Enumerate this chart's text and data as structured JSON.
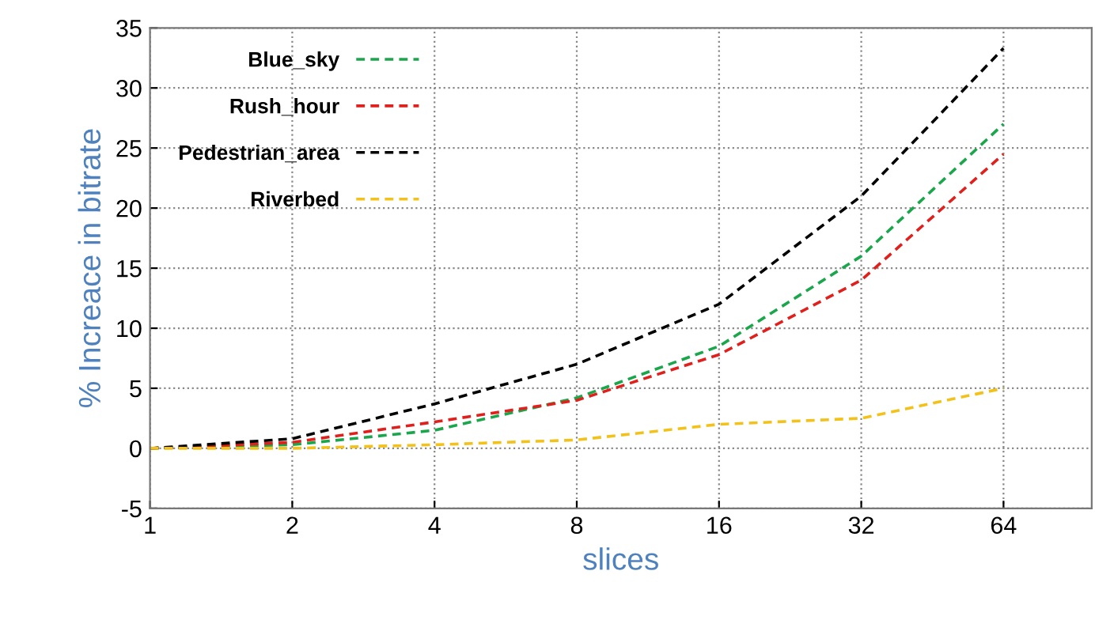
{
  "chart_data": {
    "type": "line",
    "xlabel": "slices",
    "ylabel": "% Increace in bitrate",
    "categories": [
      "1",
      "2",
      "4",
      "8",
      "16",
      "32",
      "64"
    ],
    "series": [
      {
        "name": "Blue_sky",
        "color": "#1aa64a",
        "values": [
          0,
          0.3,
          1.5,
          4.2,
          8.5,
          16,
          27
        ]
      },
      {
        "name": "Rush_hour",
        "color": "#e0201c",
        "values": [
          0,
          0.5,
          2.2,
          4,
          7.8,
          14,
          24.5
        ]
      },
      {
        "name": "Pedestrian_area",
        "color": "#000000",
        "values": [
          0,
          0.8,
          3.7,
          7,
          12,
          21,
          33.3
        ]
      },
      {
        "name": "Riverbed",
        "color": "#f2c21b",
        "values": [
          0,
          0,
          0.3,
          0.7,
          2,
          2.5,
          5
        ]
      }
    ],
    "ylim": [
      -5,
      35
    ],
    "yticks": [
      -5,
      0,
      5,
      10,
      15,
      20,
      25,
      30,
      35
    ],
    "grid": true,
    "legend": "top left",
    "line_style": "dashed",
    "marker": "none"
  }
}
